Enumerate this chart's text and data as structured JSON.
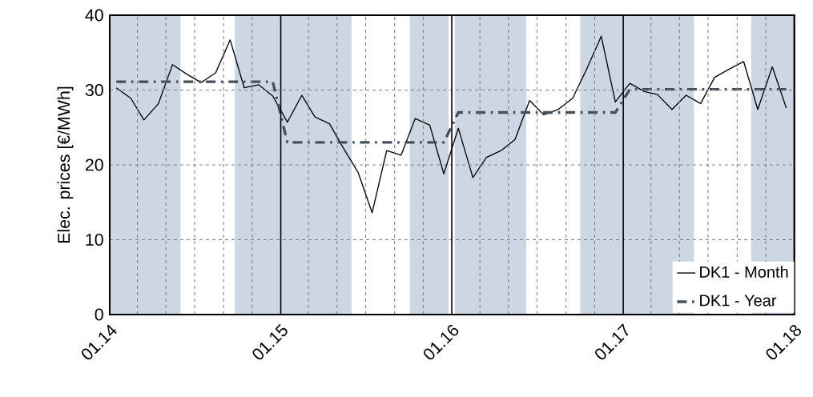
{
  "chart_data": {
    "type": "line",
    "ylabel": "Elec. prices [€/MWh]",
    "x": [
      "2014-01-15",
      "2014-02-15",
      "2014-03-15",
      "2014-04-15",
      "2014-05-15",
      "2014-06-15",
      "2014-07-15",
      "2014-08-15",
      "2014-09-15",
      "2014-10-15",
      "2014-11-15",
      "2014-12-15",
      "2015-01-15",
      "2015-02-15",
      "2015-03-15",
      "2015-04-15",
      "2015-05-15",
      "2015-06-15",
      "2015-07-15",
      "2015-08-15",
      "2015-09-15",
      "2015-10-15",
      "2015-11-15",
      "2015-12-15",
      "2016-01-15",
      "2016-02-15",
      "2016-03-15",
      "2016-04-15",
      "2016-05-15",
      "2016-06-15",
      "2016-07-15",
      "2016-08-15",
      "2016-09-15",
      "2016-10-15",
      "2016-11-15",
      "2016-12-15",
      "2017-01-15",
      "2017-02-15",
      "2017-03-15",
      "2017-04-15",
      "2017-05-15",
      "2017-06-15",
      "2017-07-15",
      "2017-08-15",
      "2017-09-15",
      "2017-10-15",
      "2017-11-15",
      "2017-12-15"
    ],
    "series": [
      {
        "name": "DK1 - Month",
        "color": "#000000",
        "line_style": "solid",
        "values": [
          30.3,
          28.9,
          26.0,
          28.2,
          33.4,
          32.1,
          31.0,
          32.3,
          36.7,
          30.3,
          30.7,
          29.2,
          25.7,
          29.3,
          26.4,
          25.5,
          22.2,
          19.0,
          13.6,
          21.9,
          21.3,
          26.2,
          25.3,
          18.8,
          24.9,
          18.3,
          21.0,
          21.9,
          23.4,
          28.6,
          26.7,
          27.4,
          28.9,
          32.8,
          37.2,
          28.4,
          30.9,
          29.8,
          29.4,
          27.4,
          29.3,
          28.2,
          31.7,
          32.8,
          33.8,
          27.4,
          33.1,
          27.6
        ]
      },
      {
        "name": "DK1 - Year",
        "color": "#44505c",
        "line_style": "dashdot",
        "values": [
          31.1,
          31.1,
          31.1,
          31.1,
          31.1,
          31.1,
          31.1,
          31.1,
          31.1,
          31.1,
          31.1,
          31.1,
          23.0,
          23.0,
          23.0,
          23.0,
          23.0,
          23.0,
          23.0,
          23.0,
          23.0,
          23.0,
          23.0,
          23.0,
          27.0,
          27.0,
          27.0,
          27.0,
          27.0,
          27.0,
          27.0,
          27.0,
          27.0,
          27.0,
          27.0,
          27.0,
          30.1,
          30.1,
          30.1,
          30.1,
          30.1,
          30.1,
          30.1,
          30.1,
          30.1,
          30.1,
          30.1,
          30.1
        ]
      }
    ],
    "xlim": [
      "2014-01-01",
      "2018-01-01"
    ],
    "xticks": [
      {
        "value": "2014-01-01",
        "label": "01.14"
      },
      {
        "value": "2014-03-01",
        "label": null
      },
      {
        "value": "2014-05-01",
        "label": null
      },
      {
        "value": "2014-07-01",
        "label": null
      },
      {
        "value": "2014-09-01",
        "label": null
      },
      {
        "value": "2014-11-01",
        "label": null
      },
      {
        "value": "2015-01-01",
        "label": "01.15"
      },
      {
        "value": "2015-03-01",
        "label": null
      },
      {
        "value": "2015-05-01",
        "label": null
      },
      {
        "value": "2015-07-01",
        "label": null
      },
      {
        "value": "2015-09-01",
        "label": null
      },
      {
        "value": "2015-11-01",
        "label": null
      },
      {
        "value": "2016-01-01",
        "label": "01.16"
      },
      {
        "value": "2016-03-01",
        "label": null
      },
      {
        "value": "2016-05-01",
        "label": null
      },
      {
        "value": "2016-07-01",
        "label": null
      },
      {
        "value": "2016-09-01",
        "label": null
      },
      {
        "value": "2016-11-01",
        "label": null
      },
      {
        "value": "2017-01-01",
        "label": "01.17"
      },
      {
        "value": "2017-03-01",
        "label": null
      },
      {
        "value": "2017-05-01",
        "label": null
      },
      {
        "value": "2017-07-01",
        "label": null
      },
      {
        "value": "2017-09-01",
        "label": null
      },
      {
        "value": "2017-11-01",
        "label": null
      },
      {
        "value": "2018-01-01",
        "label": "01.18"
      }
    ],
    "ylim": [
      0,
      40
    ],
    "yticks": [
      0,
      10,
      20,
      30,
      40
    ],
    "grid": true,
    "legend": "bottom right",
    "marker": "none",
    "bands": [
      {
        "axis": "x",
        "from": "2014-01-01",
        "to": "2014-06-01",
        "color": "#ccd7e3"
      },
      {
        "axis": "x",
        "from": "2014-09-25",
        "to": "2015-06-01",
        "color": "#ccd7e3"
      },
      {
        "axis": "x",
        "from": "2015-10-03",
        "to": "2015-12-25",
        "color": "#ccd7e3"
      },
      {
        "axis": "x",
        "from": "2016-01-07",
        "to": "2016-06-08",
        "color": "#ccd7e3"
      },
      {
        "axis": "x",
        "from": "2016-10-01",
        "to": "2017-06-01",
        "color": "#ccd7e3"
      },
      {
        "axis": "x",
        "from": "2017-10-01",
        "to": "2018-01-01",
        "color": "#ccd7e3"
      }
    ]
  }
}
